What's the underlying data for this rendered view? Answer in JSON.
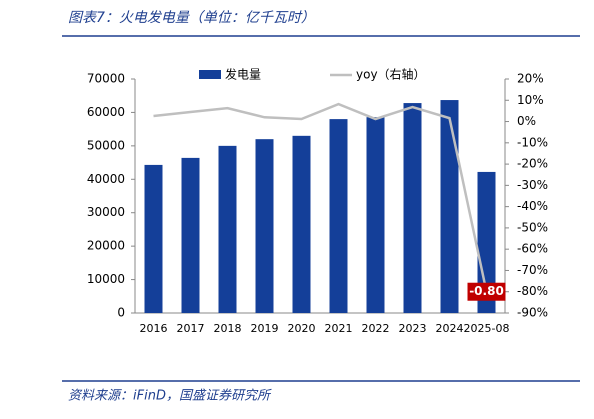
{
  "chart_data": {
    "type": "bar_line",
    "title": "图表7：火电发电量（单位：亿千瓦时）",
    "source": "资料来源：iFinD，国盛证券研究所",
    "categories": [
      "2016",
      "2017",
      "2018",
      "2019",
      "2020",
      "2021",
      "2022",
      "2023",
      "2024",
      "2025-08"
    ],
    "series": [
      {
        "name": "发电量",
        "color": "#143f99",
        "type": "bar",
        "values": [
          44300,
          46400,
          50000,
          52000,
          53000,
          58000,
          58600,
          62800,
          63700,
          42200
        ]
      },
      {
        "name": "yoy（右轴）",
        "color": "#bfbfbf",
        "type": "line",
        "axis": "y2",
        "values": [
          0.026,
          0.045,
          0.063,
          0.02,
          0.012,
          0.082,
          0.012,
          0.068,
          0.016,
          -0.8
        ],
        "value_labels": [
          null,
          null,
          null,
          null,
          null,
          null,
          null,
          null,
          null,
          "-0.80"
        ],
        "label_color": "#c00000"
      }
    ],
    "ylim": [
      0,
      70000
    ],
    "yticks": [
      0,
      10000,
      20000,
      30000,
      40000,
      50000,
      60000,
      70000
    ],
    "y2lim": [
      -0.9,
      0.2
    ],
    "y2ticks": [
      {
        "value": -0.9,
        "label": "-90%"
      },
      {
        "value": -0.8,
        "label": "-80%"
      },
      {
        "value": -0.7,
        "label": "-70%"
      },
      {
        "value": -0.6,
        "label": "-60%"
      },
      {
        "value": -0.5,
        "label": "-50%"
      },
      {
        "value": -0.4,
        "label": "-40%"
      },
      {
        "value": -0.3,
        "label": "-30%"
      },
      {
        "value": -0.2,
        "label": "-20%"
      },
      {
        "value": -0.1,
        "label": "-10%"
      },
      {
        "value": 0,
        "label": "0%"
      },
      {
        "value": 0.1,
        "label": "10%"
      },
      {
        "value": 0.2,
        "label": "20%"
      }
    ]
  }
}
